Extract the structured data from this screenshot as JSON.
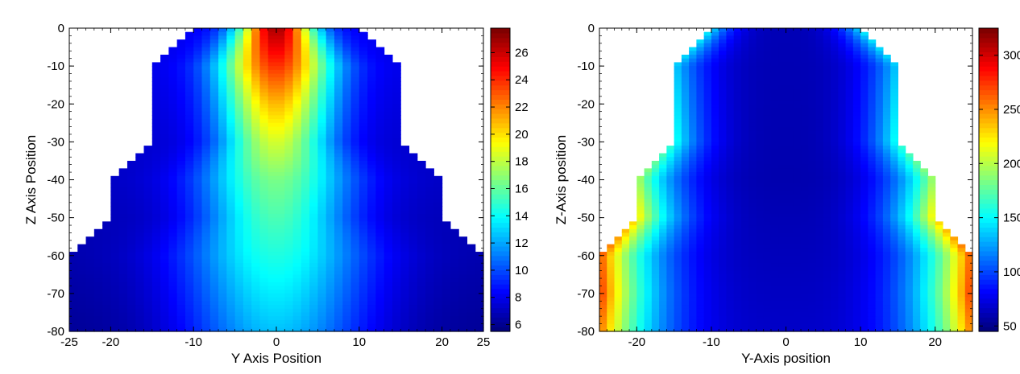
{
  "chart_data": [
    {
      "type": "heatmap",
      "title": "",
      "xlabel": "Y Axis Position",
      "ylabel": "Z Axis Position",
      "xlim": [
        -25,
        25
      ],
      "ylim": [
        -80,
        0
      ],
      "x_ticks": [
        "-25",
        "-20",
        "-10",
        "0",
        "10",
        "20",
        "25"
      ],
      "y_ticks": [
        "0",
        "-10",
        "-20",
        "-30",
        "-40",
        "-50",
        "-60",
        "-70",
        "-80"
      ],
      "colorbar": {
        "min": 5.5,
        "max": 27.8,
        "ticks": [
          "6",
          "8",
          "10",
          "12",
          "14",
          "16",
          "18",
          "20",
          "22",
          "24",
          "26"
        ]
      },
      "domain_halfwidth": [
        {
          "z": 0,
          "y": 10
        },
        {
          "z": -10,
          "y": 15
        },
        {
          "z": -30,
          "y": 15
        },
        {
          "z": -40,
          "y": 20
        },
        {
          "z": -50,
          "y": 20
        },
        {
          "z": -60,
          "y": 25
        },
        {
          "z": -80,
          "y": 25
        }
      ],
      "profile_center": [
        {
          "z": 0,
          "v": 27
        },
        {
          "z": -10,
          "v": 24
        },
        {
          "z": -20,
          "v": 21
        },
        {
          "z": -30,
          "v": 18.5
        },
        {
          "z": -40,
          "v": 16.5
        },
        {
          "z": -50,
          "v": 15.5
        },
        {
          "z": -60,
          "v": 14.5
        },
        {
          "z": -70,
          "v": 13.5
        },
        {
          "z": -80,
          "v": 12.5
        }
      ],
      "profile_edge": [
        {
          "z": 0,
          "v": 8
        },
        {
          "z": -20,
          "v": 7.5
        },
        {
          "z": -40,
          "v": 7
        },
        {
          "z": -60,
          "v": 6.5
        },
        {
          "z": -80,
          "v": 6
        }
      ]
    },
    {
      "type": "heatmap",
      "title": "",
      "xlabel": "Y-Axis position",
      "ylabel": "Z-Axis position",
      "xlim": [
        -25,
        25
      ],
      "ylim": [
        -80,
        0
      ],
      "x_ticks": [
        "-20",
        "-10",
        "0",
        "10",
        "20"
      ],
      "y_ticks": [
        "0",
        "-10",
        "-20",
        "-30",
        "-40",
        "-50",
        "-60",
        "-70",
        "-80"
      ],
      "colorbar": {
        "min": 45,
        "max": 325,
        "ticks": [
          "50",
          "100",
          "150",
          "200",
          "250",
          "300"
        ]
      },
      "domain_halfwidth": [
        {
          "z": 0,
          "y": 10
        },
        {
          "z": -10,
          "y": 15
        },
        {
          "z": -30,
          "y": 15
        },
        {
          "z": -40,
          "y": 20
        },
        {
          "z": -50,
          "y": 20
        },
        {
          "z": -60,
          "y": 25
        },
        {
          "z": -80,
          "y": 25
        }
      ],
      "profile_center": [
        {
          "z": 0,
          "v": 60
        },
        {
          "z": -40,
          "v": 58
        },
        {
          "z": -80,
          "v": 65
        }
      ],
      "profile_edge": [
        {
          "z": 0,
          "v": 150
        },
        {
          "z": -10,
          "v": 140
        },
        {
          "z": -30,
          "v": 160
        },
        {
          "z": -40,
          "v": 200
        },
        {
          "z": -50,
          "v": 230
        },
        {
          "z": -60,
          "v": 270
        },
        {
          "z": -70,
          "v": 280
        },
        {
          "z": -80,
          "v": 260
        }
      ]
    }
  ]
}
